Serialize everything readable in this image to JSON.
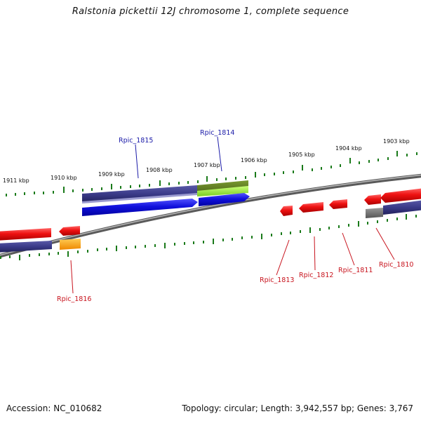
{
  "title": "Ralstonia pickettii 12J chromosome 1, complete sequence",
  "accession": "Accession: NC_010682",
  "summary": "Topology: circular; Length: 3,942,557 bp; Genes: 3,767",
  "ruler_labels": [
    "1911 kbp",
    "1910 kbp",
    "1909 kbp",
    "1908 kbp",
    "1907 kbp",
    "1906 kbp",
    "1905 kbp",
    "1904 kbp",
    "1903 kbp"
  ],
  "genes_top": [
    "Rpic_1815",
    "Rpic_1814"
  ],
  "genes_bottom": [
    "Rpic_1816",
    "Rpic_1813",
    "Rpic_1812",
    "Rpic_1811",
    "Rpic_1810"
  ],
  "colors": {
    "tick": "#1a7a1a",
    "cds": "#ee1111",
    "gene_blue": "#1111dd",
    "gene_navy": "#3a3a8a",
    "gene_olive": "#5a7a20",
    "gene_lime": "#99ee33",
    "gene_orange": "#ff9911",
    "backbone": "#888888"
  }
}
